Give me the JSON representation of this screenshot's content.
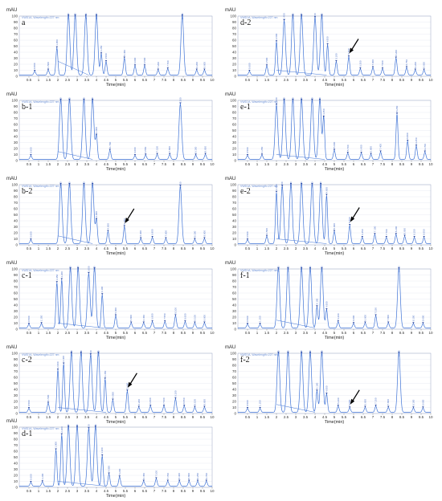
{
  "chart_data": [
    {
      "id": "a",
      "type": "line",
      "title": "a",
      "ylabel": "mAU",
      "xlabel": "Time(min)",
      "header": "VWD1A, Wavelength=227 nm",
      "xlim": [
        0,
        10
      ],
      "ylim": [
        0,
        100
      ],
      "yticks": [
        0,
        10,
        20,
        30,
        40,
        50,
        60,
        70,
        80,
        90,
        100
      ],
      "xticks": [
        0.5,
        1,
        1.5,
        2,
        2.5,
        3,
        3.5,
        4,
        4.5,
        5,
        5.5,
        6,
        6.5,
        7,
        7.5,
        8,
        8.5,
        9,
        9.5,
        10
      ],
      "peaks": [
        {
          "t": 0.8,
          "h": 6
        },
        {
          "t": 1.5,
          "h": 8
        },
        {
          "t": 1.95,
          "h": 45
        },
        {
          "t": 2.55,
          "h": 100
        },
        {
          "t": 2.9,
          "h": 100
        },
        {
          "t": 3.45,
          "h": 100
        },
        {
          "t": 4.0,
          "h": 100
        },
        {
          "t": 4.25,
          "h": 35
        },
        {
          "t": 4.5,
          "h": 22
        },
        {
          "t": 5.45,
          "h": 28
        },
        {
          "t": 6.0,
          "h": 15
        },
        {
          "t": 6.5,
          "h": 15
        },
        {
          "t": 7.2,
          "h": 8
        },
        {
          "t": 7.7,
          "h": 10
        },
        {
          "t": 8.45,
          "h": 100
        },
        {
          "t": 9.2,
          "h": 8
        },
        {
          "t": 9.6,
          "h": 8
        }
      ],
      "baseline_seg": [
        2.0,
        3.6,
        25
      ],
      "arrow": null
    },
    {
      "id": "b-1",
      "type": "line",
      "title": "b-1",
      "ylabel": "mAU",
      "xlabel": "Time(min)",
      "header": "VWD1A, Wavelength=227 nm",
      "xlim": [
        0,
        10
      ],
      "ylim": [
        0,
        100
      ],
      "yticks": [
        0,
        10,
        20,
        30,
        40,
        50,
        60,
        70,
        80,
        90,
        100
      ],
      "xticks": [
        0.5,
        1,
        1.5,
        2,
        2.5,
        3,
        3.5,
        4,
        4.5,
        5,
        5.5,
        6,
        6.5,
        7,
        7.5,
        8,
        8.5,
        9,
        9.5,
        10
      ],
      "peaks": [
        {
          "t": 0.6,
          "h": 6
        },
        {
          "t": 2.15,
          "h": 100
        },
        {
          "t": 2.6,
          "h": 100
        },
        {
          "t": 3.35,
          "h": 100
        },
        {
          "t": 3.8,
          "h": 100
        },
        {
          "t": 4.0,
          "h": 40
        },
        {
          "t": 4.7,
          "h": 15
        },
        {
          "t": 6.0,
          "h": 6
        },
        {
          "t": 6.55,
          "h": 7
        },
        {
          "t": 7.15,
          "h": 8
        },
        {
          "t": 7.8,
          "h": 8
        },
        {
          "t": 8.35,
          "h": 92
        },
        {
          "t": 9.15,
          "h": 7
        },
        {
          "t": 9.65,
          "h": 8
        }
      ],
      "baseline_seg": [
        2.0,
        3.8,
        15
      ],
      "arrow": null
    },
    {
      "id": "b-2",
      "type": "line",
      "title": "b-2",
      "ylabel": "mAU",
      "xlabel": "Time(min)",
      "header": "VWD1A, Wavelength=227 nm",
      "xlim": [
        0,
        10
      ],
      "ylim": [
        0,
        100
      ],
      "yticks": [
        0,
        10,
        20,
        30,
        40,
        50,
        60,
        70,
        80,
        90,
        100
      ],
      "xticks": [
        0.5,
        1,
        1.5,
        2,
        2.5,
        3,
        3.5,
        4,
        4.5,
        5,
        5.5,
        6,
        6.5,
        7,
        7.5,
        8,
        8.5,
        9,
        9.5,
        10
      ],
      "peaks": [
        {
          "t": 0.6,
          "h": 6
        },
        {
          "t": 2.15,
          "h": 100
        },
        {
          "t": 2.6,
          "h": 100
        },
        {
          "t": 3.35,
          "h": 100
        },
        {
          "t": 3.8,
          "h": 100
        },
        {
          "t": 4.0,
          "h": 40
        },
        {
          "t": 4.6,
          "h": 20
        },
        {
          "t": 5.45,
          "h": 28
        },
        {
          "t": 6.3,
          "h": 8
        },
        {
          "t": 6.9,
          "h": 10
        },
        {
          "t": 7.6,
          "h": 8
        },
        {
          "t": 8.35,
          "h": 95
        },
        {
          "t": 9.1,
          "h": 7
        },
        {
          "t": 9.6,
          "h": 8
        }
      ],
      "baseline_seg": [
        2.0,
        3.8,
        15
      ],
      "arrow": 5.45
    },
    {
      "id": "c-1",
      "type": "line",
      "title": "c-1",
      "ylabel": "mAU",
      "xlabel": "Time(min)",
      "header": "VWD1A, Wavelength=227 nm",
      "xlim": [
        0,
        10
      ],
      "ylim": [
        0,
        100
      ],
      "yticks": [
        0,
        10,
        20,
        30,
        40,
        50,
        60,
        70,
        80,
        90,
        100
      ],
      "xticks": [
        0.5,
        1,
        1.5,
        2,
        2.5,
        3,
        3.5,
        4,
        4.5,
        5,
        5.5,
        6,
        6.5,
        7,
        7.5,
        8,
        8.5,
        9,
        9.5,
        10
      ],
      "peaks": [
        {
          "t": 0.5,
          "h": 6
        },
        {
          "t": 1.15,
          "h": 7
        },
        {
          "t": 1.95,
          "h": 75
        },
        {
          "t": 2.2,
          "h": 80
        },
        {
          "t": 2.65,
          "h": 100
        },
        {
          "t": 3.05,
          "h": 100
        },
        {
          "t": 3.6,
          "h": 90
        },
        {
          "t": 3.9,
          "h": 100
        },
        {
          "t": 4.3,
          "h": 55
        },
        {
          "t": 5.0,
          "h": 20
        },
        {
          "t": 5.8,
          "h": 8
        },
        {
          "t": 6.45,
          "h": 8
        },
        {
          "t": 6.9,
          "h": 10
        },
        {
          "t": 7.55,
          "h": 10
        },
        {
          "t": 8.1,
          "h": 20
        },
        {
          "t": 8.6,
          "h": 10
        },
        {
          "t": 9.1,
          "h": 8
        },
        {
          "t": 9.6,
          "h": 8
        }
      ],
      "baseline_seg": [
        2.0,
        4.4,
        10
      ],
      "arrow": null
    },
    {
      "id": "c-2",
      "type": "line",
      "title": "c-2",
      "ylabel": "mAU",
      "xlabel": "Time(min)",
      "header": "VWD1A, Wavelength=227 nm",
      "xlim": [
        0,
        10
      ],
      "ylim": [
        0,
        100
      ],
      "yticks": [
        0,
        10,
        20,
        30,
        40,
        50,
        60,
        70,
        80,
        90,
        100
      ],
      "xticks": [
        0.5,
        1,
        1.5,
        2,
        2.5,
        3,
        3.5,
        4,
        4.5,
        5,
        5.5,
        6,
        6.5,
        7,
        7.5,
        8,
        8.5,
        9,
        9.5,
        10
      ],
      "peaks": [
        {
          "t": 0.5,
          "h": 6
        },
        {
          "t": 1.5,
          "h": 15
        },
        {
          "t": 2.0,
          "h": 70
        },
        {
          "t": 2.3,
          "h": 80
        },
        {
          "t": 2.7,
          "h": 100
        },
        {
          "t": 3.2,
          "h": 100
        },
        {
          "t": 3.7,
          "h": 95
        },
        {
          "t": 4.1,
          "h": 100
        },
        {
          "t": 4.45,
          "h": 55
        },
        {
          "t": 4.85,
          "h": 20
        },
        {
          "t": 5.6,
          "h": 35
        },
        {
          "t": 6.2,
          "h": 8
        },
        {
          "t": 6.8,
          "h": 10
        },
        {
          "t": 7.5,
          "h": 10
        },
        {
          "t": 8.1,
          "h": 22
        },
        {
          "t": 8.55,
          "h": 10
        },
        {
          "t": 9.1,
          "h": 8
        },
        {
          "t": 9.6,
          "h": 8
        }
      ],
      "baseline_seg": [
        2.0,
        4.5,
        10
      ],
      "arrow": 5.6
    },
    {
      "id": "d-1",
      "type": "line",
      "title": "d-1",
      "ylabel": "mAU",
      "xlabel": "Time(min)",
      "header": "VWD1A, Wavelength=227 nm",
      "xlim": [
        0,
        10
      ],
      "ylim": [
        0,
        100
      ],
      "yticks": [
        0,
        10,
        20,
        30,
        40,
        50,
        60,
        70,
        80,
        90,
        100
      ],
      "xticks": [
        0.5,
        1,
        1.5,
        2,
        2.5,
        3,
        3.5,
        4,
        4.5,
        5,
        5.5,
        6,
        6.5,
        7,
        7.5,
        8,
        8.5,
        9,
        9.5,
        10
      ],
      "peaks": [
        {
          "t": 0.6,
          "h": 6
        },
        {
          "t": 1.2,
          "h": 7
        },
        {
          "t": 1.9,
          "h": 60
        },
        {
          "t": 2.2,
          "h": 85
        },
        {
          "t": 2.55,
          "h": 100
        },
        {
          "t": 3.0,
          "h": 100
        },
        {
          "t": 3.6,
          "h": 95
        },
        {
          "t": 3.95,
          "h": 100
        },
        {
          "t": 4.3,
          "h": 50
        },
        {
          "t": 4.65,
          "h": 20
        },
        {
          "t": 5.2,
          "h": 15
        },
        {
          "t": 6.45,
          "h": 8
        },
        {
          "t": 7.1,
          "h": 12
        },
        {
          "t": 7.7,
          "h": 8
        },
        {
          "t": 8.3,
          "h": 8
        },
        {
          "t": 8.8,
          "h": 8
        },
        {
          "t": 9.25,
          "h": 8
        },
        {
          "t": 9.7,
          "h": 8
        }
      ],
      "baseline_seg": [
        2.0,
        4.5,
        10
      ],
      "arrow": null
    },
    {
      "id": "d-2",
      "type": "line",
      "title": "d-2",
      "ylabel": "mAU",
      "xlabel": "Time(min)",
      "header": "VWD1A, Wavelength=227 nm",
      "xlim": [
        0,
        10
      ],
      "ylim": [
        0,
        100
      ],
      "yticks": [
        0,
        10,
        20,
        30,
        40,
        50,
        60,
        70,
        80,
        90,
        100
      ],
      "xticks": [
        0.5,
        1,
        1.5,
        2,
        2.5,
        3,
        3.5,
        4,
        4.5,
        5,
        5.5,
        6,
        6.5,
        7,
        7.5,
        8,
        8.5,
        9,
        9.5,
        10
      ],
      "peaks": [
        {
          "t": 0.6,
          "h": 6
        },
        {
          "t": 1.5,
          "h": 15
        },
        {
          "t": 2.0,
          "h": 55
        },
        {
          "t": 2.4,
          "h": 90
        },
        {
          "t": 2.85,
          "h": 100
        },
        {
          "t": 3.3,
          "h": 100
        },
        {
          "t": 4.0,
          "h": 95
        },
        {
          "t": 4.35,
          "h": 100
        },
        {
          "t": 4.65,
          "h": 50
        },
        {
          "t": 5.1,
          "h": 22
        },
        {
          "t": 5.75,
          "h": 30
        },
        {
          "t": 6.35,
          "h": 10
        },
        {
          "t": 7.0,
          "h": 12
        },
        {
          "t": 7.5,
          "h": 10
        },
        {
          "t": 8.2,
          "h": 28
        },
        {
          "t": 8.75,
          "h": 12
        },
        {
          "t": 9.2,
          "h": 8
        },
        {
          "t": 9.65,
          "h": 8
        }
      ],
      "baseline_seg": [
        2.0,
        4.6,
        10
      ],
      "arrow": 5.75
    },
    {
      "id": "e-1",
      "type": "line",
      "title": "e-1",
      "ylabel": "mAU",
      "xlabel": "Time(min)",
      "header": "VWD1A, Wavelength=227 nm",
      "xlim": [
        0,
        10
      ],
      "ylim": [
        0,
        100
      ],
      "yticks": [
        0,
        10,
        20,
        30,
        40,
        50,
        60,
        70,
        80,
        90,
        100
      ],
      "xticks": [
        0.5,
        1,
        1.5,
        2,
        2.5,
        3,
        3.5,
        4,
        4.5,
        5,
        5.5,
        6,
        6.5,
        7,
        7.5,
        8,
        8.5,
        9,
        9.5,
        10
      ],
      "peaks": [
        {
          "t": 0.5,
          "h": 6
        },
        {
          "t": 1.25,
          "h": 7
        },
        {
          "t": 2.0,
          "h": 90
        },
        {
          "t": 2.4,
          "h": 100
        },
        {
          "t": 2.85,
          "h": 100
        },
        {
          "t": 3.3,
          "h": 100
        },
        {
          "t": 3.85,
          "h": 100
        },
        {
          "t": 4.25,
          "h": 100
        },
        {
          "t": 4.45,
          "h": 70
        },
        {
          "t": 5.0,
          "h": 15
        },
        {
          "t": 5.7,
          "h": 10
        },
        {
          "t": 6.4,
          "h": 10
        },
        {
          "t": 6.9,
          "h": 8
        },
        {
          "t": 7.4,
          "h": 12
        },
        {
          "t": 8.25,
          "h": 75
        },
        {
          "t": 8.8,
          "h": 30
        },
        {
          "t": 9.25,
          "h": 22
        },
        {
          "t": 9.7,
          "h": 12
        }
      ],
      "baseline_seg": [
        2.0,
        4.5,
        10
      ],
      "arrow": null
    },
    {
      "id": "e-2",
      "type": "line",
      "title": "e-2",
      "ylabel": "mAU",
      "xlabel": "Time(min)",
      "header": "VWD1A, Wavelength=227 nm",
      "xlim": [
        0,
        10
      ],
      "ylim": [
        0,
        100
      ],
      "yticks": [
        0,
        10,
        20,
        30,
        40,
        50,
        60,
        70,
        80,
        90,
        100
      ],
      "xticks": [
        0.5,
        1,
        1.5,
        2,
        2.5,
        3,
        3.5,
        4,
        4.5,
        5,
        5.5,
        6,
        6.5,
        7,
        7.5,
        8,
        8.5,
        9,
        9.5,
        10
      ],
      "peaks": [
        {
          "t": 0.5,
          "h": 6
        },
        {
          "t": 1.5,
          "h": 12
        },
        {
          "t": 2.0,
          "h": 85
        },
        {
          "t": 2.3,
          "h": 95
        },
        {
          "t": 2.75,
          "h": 100
        },
        {
          "t": 3.3,
          "h": 100
        },
        {
          "t": 3.85,
          "h": 100
        },
        {
          "t": 4.3,
          "h": 100
        },
        {
          "t": 4.6,
          "h": 80
        },
        {
          "t": 5.0,
          "h": 20
        },
        {
          "t": 5.8,
          "h": 30
        },
        {
          "t": 6.45,
          "h": 10
        },
        {
          "t": 7.1,
          "h": 15
        },
        {
          "t": 7.7,
          "h": 10
        },
        {
          "t": 8.2,
          "h": 15
        },
        {
          "t": 8.65,
          "h": 12
        },
        {
          "t": 9.15,
          "h": 10
        },
        {
          "t": 9.65,
          "h": 10
        }
      ],
      "baseline_seg": [
        2.0,
        4.6,
        10
      ],
      "arrow": 5.8
    },
    {
      "id": "f-1",
      "type": "line",
      "title": "f-1",
      "ylabel": "mAU",
      "xlabel": "Time(min)",
      "header": "VWD1A, Wavelength=227 nm",
      "xlim": [
        0,
        10
      ],
      "ylim": [
        0,
        100
      ],
      "yticks": [
        0,
        10,
        20,
        30,
        40,
        50,
        60,
        70,
        80,
        90,
        100
      ],
      "xticks": [
        0.5,
        1,
        1.5,
        2,
        2.5,
        3,
        3.5,
        4,
        4.5,
        5,
        5.5,
        6,
        6.5,
        7,
        7.5,
        8,
        8.5,
        9,
        9.5,
        10
      ],
      "peaks": [
        {
          "t": 0.5,
          "h": 6
        },
        {
          "t": 1.15,
          "h": 6
        },
        {
          "t": 2.1,
          "h": 100
        },
        {
          "t": 2.6,
          "h": 100
        },
        {
          "t": 3.3,
          "h": 100
        },
        {
          "t": 3.75,
          "h": 100
        },
        {
          "t": 4.1,
          "h": 35
        },
        {
          "t": 4.35,
          "h": 100
        },
        {
          "t": 4.6,
          "h": 30
        },
        {
          "t": 5.2,
          "h": 10
        },
        {
          "t": 6.0,
          "h": 7
        },
        {
          "t": 6.6,
          "h": 8
        },
        {
          "t": 7.15,
          "h": 20
        },
        {
          "t": 7.8,
          "h": 8
        },
        {
          "t": 8.35,
          "h": 100
        },
        {
          "t": 9.1,
          "h": 7
        },
        {
          "t": 9.6,
          "h": 7
        }
      ],
      "baseline_seg": [
        2.0,
        4.0,
        15
      ],
      "arrow": null
    },
    {
      "id": "f-2",
      "type": "line",
      "title": "f-2",
      "ylabel": "mAU",
      "xlabel": "Time(min)",
      "header": "VWD1A, Wavelength=227 nm",
      "xlim": [
        0,
        10
      ],
      "ylim": [
        0,
        100
      ],
      "yticks": [
        0,
        10,
        20,
        30,
        40,
        50,
        60,
        70,
        80,
        90,
        100
      ],
      "xticks": [
        0.5,
        1,
        1.5,
        2,
        2.5,
        3,
        3.5,
        4,
        4.5,
        5,
        5.5,
        6,
        6.5,
        7,
        7.5,
        8,
        8.5,
        9,
        9.5,
        10
      ],
      "peaks": [
        {
          "t": 0.5,
          "h": 6
        },
        {
          "t": 1.15,
          "h": 6
        },
        {
          "t": 2.1,
          "h": 100
        },
        {
          "t": 2.6,
          "h": 100
        },
        {
          "t": 3.3,
          "h": 100
        },
        {
          "t": 3.75,
          "h": 100
        },
        {
          "t": 4.1,
          "h": 35
        },
        {
          "t": 4.35,
          "h": 100
        },
        {
          "t": 4.6,
          "h": 30
        },
        {
          "t": 5.2,
          "h": 10
        },
        {
          "t": 5.8,
          "h": 7
        },
        {
          "t": 6.6,
          "h": 8
        },
        {
          "t": 7.15,
          "h": 10
        },
        {
          "t": 7.8,
          "h": 8
        },
        {
          "t": 8.35,
          "h": 100
        },
        {
          "t": 9.1,
          "h": 7
        },
        {
          "t": 9.6,
          "h": 7
        }
      ],
      "baseline_seg": [
        2.0,
        4.0,
        15
      ],
      "arrow": 5.8
    }
  ]
}
